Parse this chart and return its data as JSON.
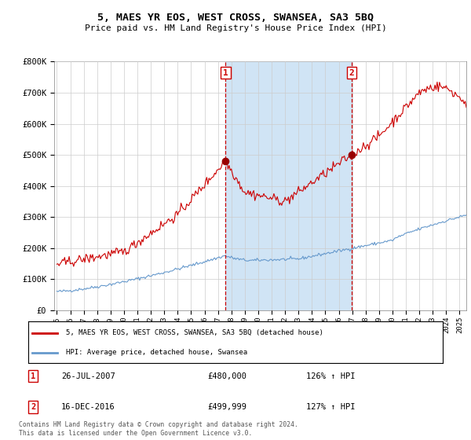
{
  "title": "5, MAES YR EOS, WEST CROSS, SWANSEA, SA3 5BQ",
  "subtitle": "Price paid vs. HM Land Registry's House Price Index (HPI)",
  "legend_line1": "5, MAES YR EOS, WEST CROSS, SWANSEA, SA3 5BQ (detached house)",
  "legend_line2": "HPI: Average price, detached house, Swansea",
  "footnote": "Contains HM Land Registry data © Crown copyright and database right 2024.\nThis data is licensed under the Open Government Licence v3.0.",
  "sale1_label": "26-JUL-2007",
  "sale1_price": "£480,000",
  "sale1_hpi": "126% ↑ HPI",
  "sale1_x": 2007.57,
  "sale1_y": 480000,
  "sale2_label": "16-DEC-2016",
  "sale2_price": "£499,999",
  "sale2_hpi": "127% ↑ HPI",
  "sale2_x": 2016.96,
  "sale2_y": 499999,
  "hpi_color": "#6699cc",
  "price_color": "#cc0000",
  "shade_color": "#d0e4f5",
  "marker_box_color": "#cc0000",
  "ylim": [
    0,
    800000
  ],
  "xlim_start": 1994.8,
  "xlim_end": 2025.5,
  "yticks": [
    0,
    100000,
    200000,
    300000,
    400000,
    500000,
    600000,
    700000,
    800000
  ],
  "ytick_labels": [
    "£0",
    "£100K",
    "£200K",
    "£300K",
    "£400K",
    "£500K",
    "£600K",
    "£700K",
    "£800K"
  ]
}
